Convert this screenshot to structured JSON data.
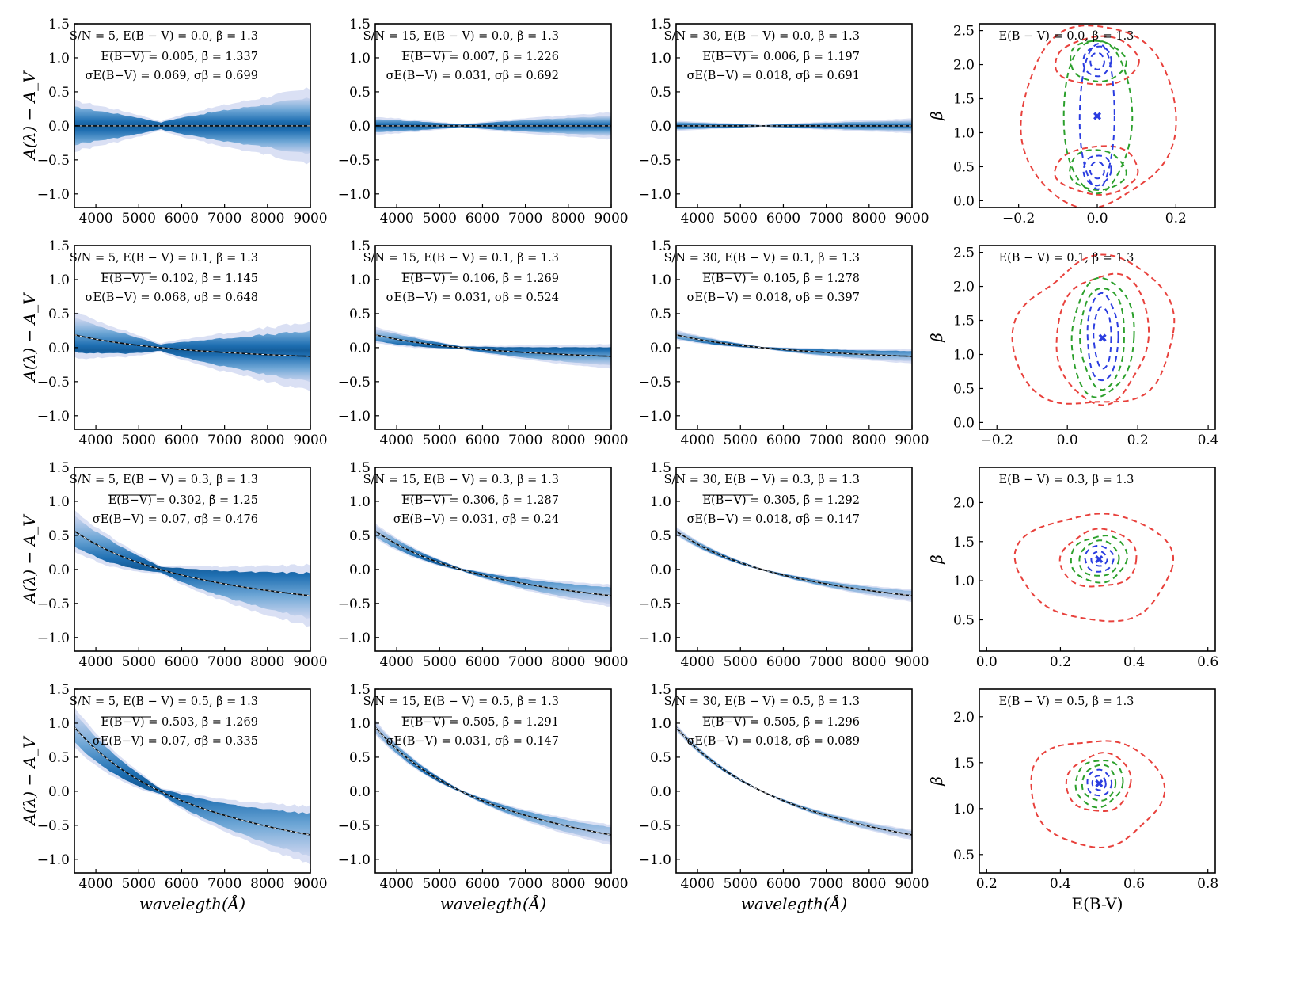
{
  "chart_data": {
    "type": "figure-grid",
    "description_rows": "rows: E(B-V) = 0.0, 0.1, 0.3, 0.5; columns 1-3: S/N = 5, 15, 30 extinction curve distributions; column 4: contour of fitted E(B-V) vs beta",
    "left": {
      "ylabel": "A(λ) − A_V",
      "xlabel": "wavelegth(Å)",
      "xlim": [
        3500,
        9000
      ],
      "ylim": [
        -1.2,
        1.5
      ],
      "xticks": [
        "4000",
        "5000",
        "6000",
        "7000",
        "8000",
        "9000"
      ],
      "yticks": [
        "1.5",
        "1.0",
        "0.5",
        "0.0",
        "−0.5",
        "−1.0"
      ],
      "colors": {
        "hist": "#1f77b4",
        "median": "#111111"
      }
    },
    "right": {
      "xlabel": "E(B-V)",
      "ylabel": "β",
      "colors": {
        "red": "#e8413c",
        "green": "#2ca02c",
        "blue": "#2b3de0",
        "marker": "#2b3de0"
      }
    },
    "rows": [
      {
        "ebv": 0.0,
        "panels": [
          {
            "sn": 5,
            "spread": 0.36,
            "line1": "S/N = 5, E(B − V) = 0.0, β = 1.3",
            "line2": "E(B−V) = 0.005, β̄ = 1.337",
            "line3": "σE(B−V) = 0.069, σβ = 0.699"
          },
          {
            "sn": 15,
            "spread": 0.13,
            "line1": "S/N = 15, E(B − V) = 0.0, β = 1.3",
            "line2": "E(B−V) = 0.007, β̄ = 1.226",
            "line3": "σE(B−V) = 0.031, σβ = 0.692"
          },
          {
            "sn": 30,
            "spread": 0.07,
            "line1": "S/N = 30, E(B − V) = 0.0, β = 1.3",
            "line2": "E(B−V) = 0.006, β̄ = 1.197",
            "line3": "σE(B−V) = 0.018, σβ = 0.691"
          }
        ],
        "contour": {
          "label": "E(B − V) = 0.0, β = 1.3",
          "xlim": [
            -0.3,
            0.3
          ],
          "ylim": [
            -0.1,
            2.6
          ],
          "xticks": [
            "−0.2",
            "0.0",
            "0.2"
          ],
          "xtickvals": [
            -0.2,
            0.0,
            0.2
          ],
          "yticks": [
            "0.0",
            "0.5",
            "1.0",
            "1.5",
            "2.0",
            "2.5"
          ],
          "ytickvals": [
            0.0,
            0.5,
            1.0,
            1.5,
            2.0,
            2.5
          ],
          "marker": [
            0.0,
            1.25
          ],
          "shape": "bimodal"
        }
      },
      {
        "ebv": 0.1,
        "panels": [
          {
            "sn": 5,
            "spread": 0.33,
            "line1": "S/N = 5, E(B − V) = 0.1, β = 1.3",
            "line2": "E(B−V) = 0.102, β̄ = 1.145",
            "line3": "σE(B−V) = 0.068, σβ = 0.648"
          },
          {
            "sn": 15,
            "spread": 0.12,
            "line1": "S/N = 15, E(B − V) = 0.1, β = 1.3",
            "line2": "E(B−V) = 0.106, β̄ = 1.269",
            "line3": "σE(B−V) = 0.031, σβ = 0.524"
          },
          {
            "sn": 30,
            "spread": 0.07,
            "line1": "S/N = 30, E(B − V) = 0.1, β = 1.3",
            "line2": "E(B−V) = 0.105, β̄ = 1.278",
            "line3": "σE(B−V) = 0.018, σβ = 0.397"
          }
        ],
        "contour": {
          "label": "E(B − V) = 0.1, β = 1.3",
          "xlim": [
            -0.25,
            0.42
          ],
          "ylim": [
            -0.1,
            2.6
          ],
          "xticks": [
            "−0.2",
            "0.0",
            "0.2",
            "0.4"
          ],
          "xtickvals": [
            -0.2,
            0.0,
            0.2,
            0.4
          ],
          "yticks": [
            "0.0",
            "0.5",
            "1.0",
            "1.5",
            "2.0",
            "2.5"
          ],
          "ytickvals": [
            0.0,
            0.5,
            1.0,
            1.5,
            2.0,
            2.5
          ],
          "marker": [
            0.1,
            1.25
          ],
          "shape": "elongated"
        }
      },
      {
        "ebv": 0.3,
        "panels": [
          {
            "sn": 5,
            "spread": 0.3,
            "line1": "S/N = 5, E(B − V) = 0.3, β = 1.3",
            "line2": "E(B−V) = 0.302, β̄ = 1.25",
            "line3": "σE(B−V) = 0.07, σβ = 0.476"
          },
          {
            "sn": 15,
            "spread": 0.11,
            "line1": "S/N = 15, E(B − V) = 0.3, β = 1.3",
            "line2": "E(B−V) = 0.306, β̄ = 1.287",
            "line3": "σE(B−V) = 0.031, σβ = 0.24"
          },
          {
            "sn": 30,
            "spread": 0.06,
            "line1": "S/N = 30, E(B − V) = 0.3, β = 1.3",
            "line2": "E(B−V) = 0.305, β̄ = 1.292",
            "line3": "σE(B−V) = 0.018, σβ = 0.147"
          }
        ],
        "contour": {
          "label": "E(B − V) = 0.3, β = 1.3",
          "xlim": [
            -0.02,
            0.62
          ],
          "ylim": [
            0.1,
            2.45
          ],
          "xticks": [
            "0.0",
            "0.2",
            "0.4",
            "0.6"
          ],
          "xtickvals": [
            0.0,
            0.2,
            0.4,
            0.6
          ],
          "yticks": [
            "0.5",
            "1.0",
            "1.5",
            "2.0"
          ],
          "ytickvals": [
            0.5,
            1.0,
            1.5,
            2.0
          ],
          "marker": [
            0.305,
            1.28
          ],
          "shape": "compact"
        }
      },
      {
        "ebv": 0.5,
        "panels": [
          {
            "sn": 5,
            "spread": 0.28,
            "line1": "S/N = 5, E(B − V) = 0.5, β = 1.3",
            "line2": "E(B−V) = 0.503, β̄ = 1.269",
            "line3": "σE(B−V) = 0.07, σβ = 0.335"
          },
          {
            "sn": 15,
            "spread": 0.1,
            "line1": "S/N = 15, E(B − V) = 0.5, β = 1.3",
            "line2": "E(B−V) = 0.505, β̄ = 1.291",
            "line3": "σE(B−V) = 0.031, σβ = 0.147"
          },
          {
            "sn": 30,
            "spread": 0.05,
            "line1": "S/N = 30, E(B − V) = 0.5, β = 1.3",
            "line2": "E(B−V) = 0.505, β̄ = 1.296",
            "line3": "σE(B−V) = 0.018, σβ = 0.089"
          }
        ],
        "contour": {
          "label": "E(B − V) = 0.5, β = 1.3",
          "xlim": [
            0.18,
            0.82
          ],
          "ylim": [
            0.3,
            2.3
          ],
          "xticks": [
            "0.2",
            "0.4",
            "0.6",
            "0.8"
          ],
          "xtickvals": [
            0.2,
            0.4,
            0.6,
            0.8
          ],
          "yticks": [
            "0.5",
            "1.0",
            "1.5",
            "2.0"
          ],
          "ytickvals": [
            0.5,
            1.0,
            1.5,
            2.0
          ],
          "marker": [
            0.505,
            1.28
          ],
          "shape": "compact"
        }
      }
    ]
  }
}
